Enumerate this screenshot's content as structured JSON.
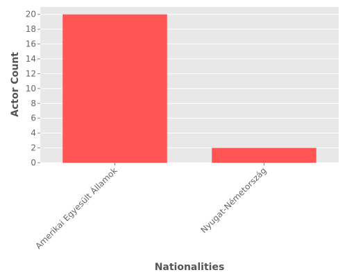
{
  "chart_data": {
    "type": "bar",
    "categories": [
      "Amerikai Egyesült Államok",
      "Nyugat-Németország"
    ],
    "values": [
      20,
      2
    ],
    "xlabel": "Nationalities",
    "ylabel": "Actor Count",
    "ylim": [
      0,
      21
    ],
    "yticks": [
      0,
      2,
      4,
      6,
      8,
      10,
      12,
      14,
      16,
      18,
      20
    ],
    "grid": true,
    "colors": {
      "bar": "#ff5555",
      "plot_background": "#e8e8e8",
      "grid": "#ffffff"
    }
  }
}
